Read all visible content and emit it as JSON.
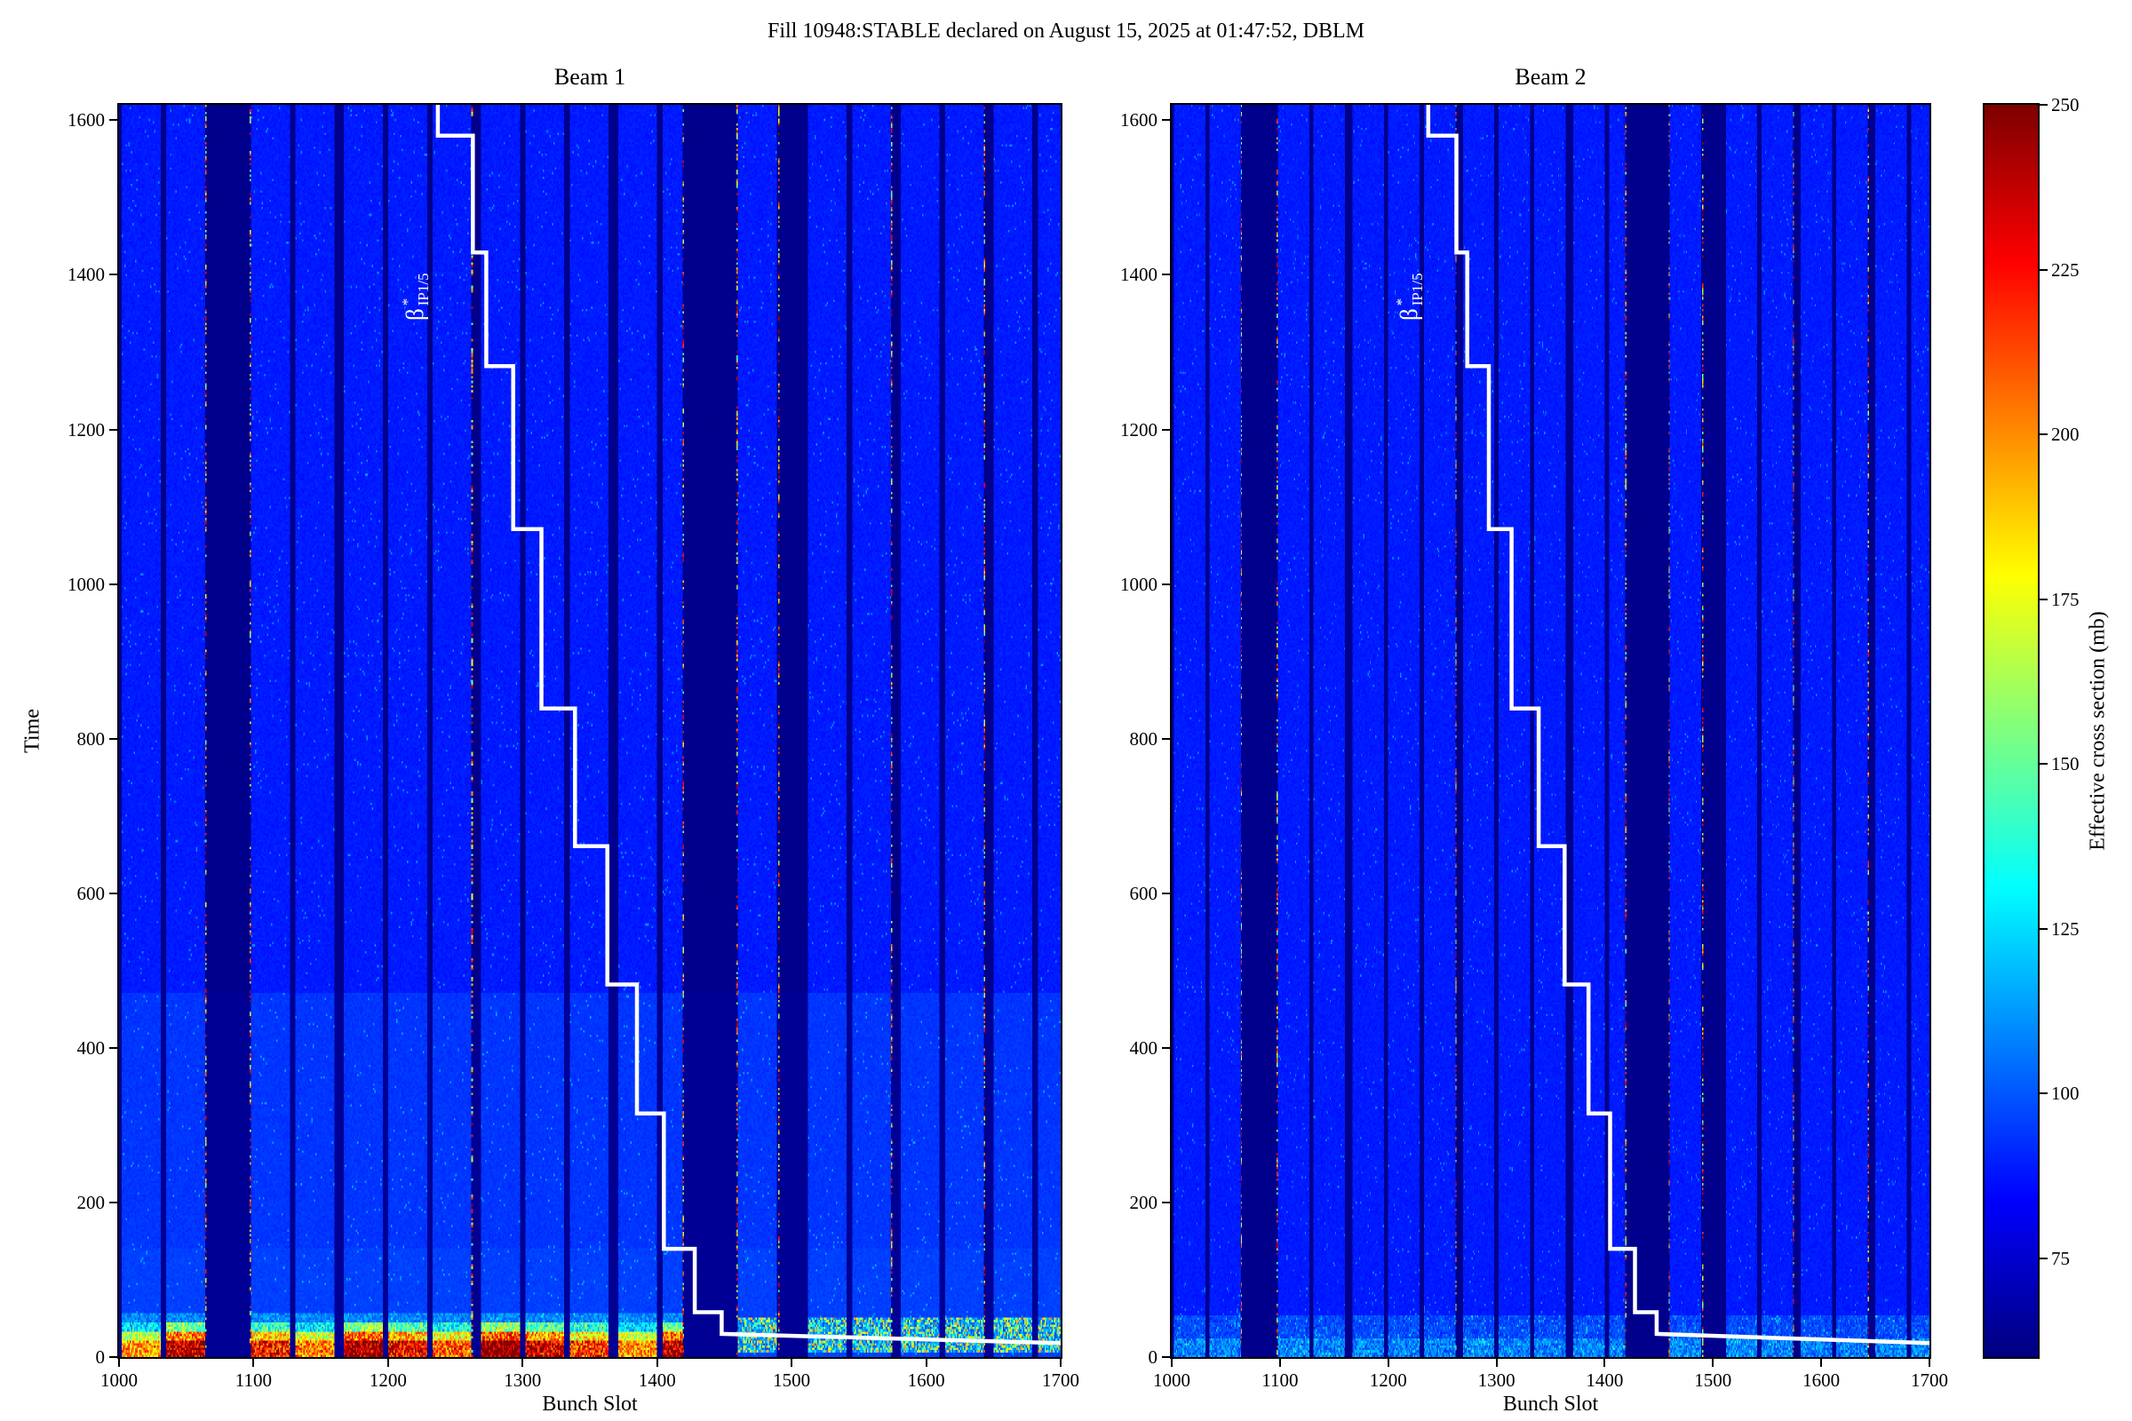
{
  "header": {
    "title": "Fill 10948:STABLE declared on August 15, 2025 at 01:47:52, DBLM"
  },
  "chart_data": {
    "type": "heatmap",
    "panels": [
      {
        "title": "Beam 1"
      },
      {
        "title": "Beam 2"
      }
    ],
    "xlabel": "Bunch Slot",
    "ylabel": "Time",
    "xlim": [
      1000,
      1700
    ],
    "ylim": [
      0,
      1620
    ],
    "xticks": [
      1000,
      1100,
      1200,
      1300,
      1400,
      1500,
      1600,
      1700
    ],
    "yticks": [
      0,
      200,
      400,
      600,
      800,
      1000,
      1200,
      1400,
      1600
    ],
    "colorbar": {
      "label": "Effective cross section (mb)",
      "ticks": [
        75,
        100,
        125,
        150,
        175,
        200,
        225,
        250
      ],
      "vmin": 60,
      "vmax": 250,
      "colormap": "jet"
    },
    "beta_label": {
      "symbol": "β",
      "sup": "*",
      "sub": "IP1/5"
    },
    "beta_line_points": [
      [
        1237,
        1620
      ],
      [
        1237,
        1580
      ],
      [
        1263,
        1580
      ],
      [
        1263,
        1429
      ],
      [
        1273,
        1429
      ],
      [
        1273,
        1282
      ],
      [
        1293,
        1282
      ],
      [
        1293,
        1071
      ],
      [
        1314,
        1071
      ],
      [
        1314,
        839
      ],
      [
        1339,
        839
      ],
      [
        1339,
        661
      ],
      [
        1363,
        661
      ],
      [
        1363,
        482
      ],
      [
        1385,
        482
      ],
      [
        1385,
        315
      ],
      [
        1405,
        315
      ],
      [
        1405,
        140
      ],
      [
        1428,
        140
      ],
      [
        1428,
        58
      ],
      [
        1448,
        58
      ],
      [
        1448,
        30
      ],
      [
        1700,
        18
      ]
    ],
    "trains": [
      [
        1002,
        1030
      ],
      [
        1035,
        1063
      ],
      [
        1098,
        1126
      ],
      [
        1131,
        1159
      ],
      [
        1167,
        1195
      ],
      [
        1200,
        1228
      ],
      [
        1233,
        1261
      ],
      [
        1269,
        1297
      ],
      [
        1302,
        1330
      ],
      [
        1335,
        1363
      ],
      [
        1371,
        1399
      ],
      [
        1404,
        1418
      ],
      [
        1460,
        1488
      ],
      [
        1512,
        1540
      ],
      [
        1545,
        1573
      ],
      [
        1581,
        1609
      ],
      [
        1614,
        1642
      ],
      [
        1650,
        1678
      ],
      [
        1683,
        1700
      ]
    ],
    "hot_columns": [
      1064,
      1097,
      1262,
      1419,
      1459,
      1490,
      1574,
      1643
    ],
    "beam1": {
      "hot_region_slot_max": 1458,
      "hot_region_time_max": 58,
      "light_band_time_max": 470
    },
    "beam2": {
      "bottom_band_time_max": 54
    }
  }
}
